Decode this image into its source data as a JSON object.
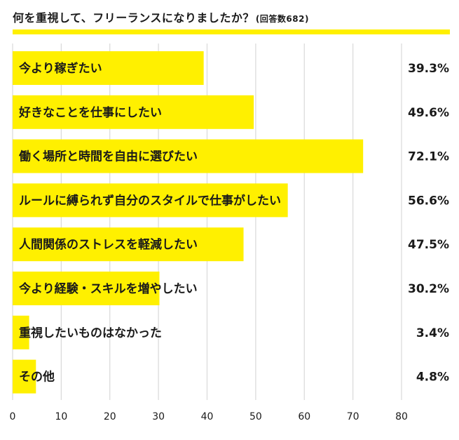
{
  "header": {
    "title": "何を重視して、フリーランスになりましたか？",
    "subtitle": "(回答数682)"
  },
  "colors": {
    "bar": "#fff000",
    "grid": "#d9d9d9",
    "text": "#1a1a1a",
    "rule": "#fff000"
  },
  "chart_data": {
    "type": "bar",
    "orientation": "horizontal",
    "title": "何を重視して、フリーランスになりましたか？",
    "subtitle": "(回答数682)",
    "categories": [
      "今より稼ぎたい",
      "好きなことを仕事にしたい",
      "働く場所と時間を自由に選びたい",
      "ルールに縛られず自分のスタイルで仕事がしたい",
      "人間関係のストレスを軽減したい",
      "今より経験・スキルを増やしたい",
      "重視したいものはなかった",
      "その他"
    ],
    "values": [
      39.3,
      49.6,
      72.1,
      56.6,
      47.5,
      30.2,
      3.4,
      4.8
    ],
    "value_labels": [
      "39.3%",
      "49.6%",
      "72.1%",
      "56.6%",
      "47.5%",
      "30.2%",
      "3.4%",
      "4.8%"
    ],
    "xlim": [
      0,
      80
    ],
    "xticks": [
      0,
      10,
      20,
      30,
      40,
      50,
      60,
      70,
      80
    ],
    "xtick_labels": [
      "0",
      "10",
      "20",
      "30",
      "40",
      "50",
      "60",
      "70",
      "80"
    ],
    "grid": true,
    "xlabel": "",
    "ylabel": ""
  }
}
